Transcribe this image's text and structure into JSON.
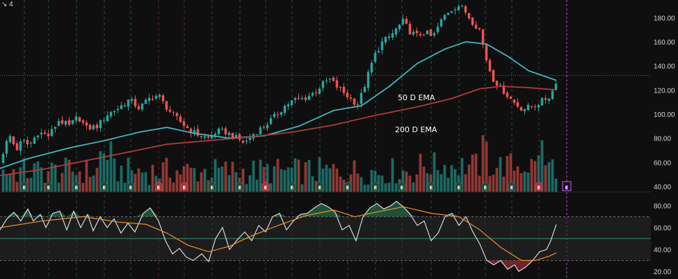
{
  "header": {
    "corner_label": "4"
  },
  "colors": {
    "background": "#0f0f0f",
    "candle_up": "#26a69a",
    "candle_down": "#ef5350",
    "vol_up": "#1f7a72",
    "vol_down": "#a83f3c",
    "ema50": "#3fb6bf",
    "ema200": "#b23a3d",
    "rsi": "#e8e8ee",
    "rsi_ma": "#f0922e",
    "grid_green": "#2f7a55",
    "grid_red": "#8a3140",
    "now_line": "#b04bd6"
  },
  "chart_data": [
    {
      "type": "line",
      "subtype": "candlestick_with_volume",
      "title": "",
      "ylim": [
        40,
        190
      ],
      "yticks": [
        "180.00",
        "160.00",
        "140.00",
        "120.00",
        "100.00",
        "80.00",
        "60.00",
        "40.00"
      ],
      "price_path": [
        [
          0,
          60
        ],
        [
          8,
          75
        ],
        [
          15,
          82
        ],
        [
          23,
          70
        ],
        [
          32,
          78
        ],
        [
          42,
          74
        ],
        [
          55,
          85
        ],
        [
          70,
          82
        ],
        [
          85,
          95
        ],
        [
          100,
          90
        ],
        [
          112,
          98
        ],
        [
          125,
          88
        ],
        [
          140,
          90
        ],
        [
          155,
          100
        ],
        [
          170,
          105
        ],
        [
          186,
          112
        ],
        [
          200,
          105
        ],
        [
          215,
          113
        ],
        [
          228,
          116
        ],
        [
          236,
          108
        ],
        [
          248,
          100
        ],
        [
          262,
          92
        ],
        [
          275,
          86
        ],
        [
          288,
          82
        ],
        [
          300,
          80
        ],
        [
          312,
          86
        ],
        [
          325,
          85
        ],
        [
          340,
          80
        ],
        [
          352,
          76
        ],
        [
          365,
          84
        ],
        [
          380,
          90
        ],
        [
          395,
          98
        ],
        [
          410,
          107
        ],
        [
          424,
          112
        ],
        [
          438,
          113
        ],
        [
          452,
          118
        ],
        [
          466,
          126
        ],
        [
          474,
          129
        ],
        [
          484,
          123
        ],
        [
          496,
          117
        ],
        [
          505,
          112
        ],
        [
          515,
          108
        ],
        [
          525,
          125
        ],
        [
          538,
          148
        ],
        [
          550,
          160
        ],
        [
          562,
          165
        ],
        [
          572,
          172
        ],
        [
          580,
          177
        ],
        [
          590,
          168
        ],
        [
          600,
          165
        ],
        [
          612,
          168
        ],
        [
          622,
          163
        ],
        [
          632,
          175
        ],
        [
          642,
          184
        ],
        [
          652,
          188
        ],
        [
          660,
          190
        ],
        [
          668,
          186
        ],
        [
          680,
          176
        ],
        [
          690,
          170
        ],
        [
          698,
          148
        ],
        [
          708,
          130
        ],
        [
          720,
          122
        ],
        [
          732,
          114
        ],
        [
          742,
          108
        ],
        [
          752,
          104
        ],
        [
          762,
          106
        ],
        [
          772,
          108
        ],
        [
          782,
          112
        ],
        [
          792,
          115
        ],
        [
          800,
          128
        ]
      ],
      "series": [
        {
          "name": "50 D EMA",
          "values": [
            [
              0,
              55
            ],
            [
              40,
              63
            ],
            [
              100,
              72
            ],
            [
              150,
              78
            ],
            [
              200,
              85
            ],
            [
              240,
              89
            ],
            [
              280,
              84
            ],
            [
              330,
              80
            ],
            [
              380,
              82
            ],
            [
              430,
              90
            ],
            [
              480,
              103
            ],
            [
              520,
              107
            ],
            [
              560,
              123
            ],
            [
              600,
              142
            ],
            [
              640,
              154
            ],
            [
              670,
              160
            ],
            [
              700,
              158
            ],
            [
              730,
              148
            ],
            [
              760,
              136
            ],
            [
              790,
              130
            ],
            [
              800,
              128
            ]
          ]
        },
        {
          "name": "200 D EMA",
          "values": [
            [
              0,
              49
            ],
            [
              60,
              54
            ],
            [
              120,
              61
            ],
            [
              180,
              68
            ],
            [
              240,
              75
            ],
            [
              300,
              78
            ],
            [
              360,
              81
            ],
            [
              420,
              85
            ],
            [
              480,
              91
            ],
            [
              540,
              99
            ],
            [
              600,
              106
            ],
            [
              650,
              113
            ],
            [
              690,
              121
            ],
            [
              720,
              123
            ],
            [
              760,
              122
            ],
            [
              800,
              120
            ]
          ]
        }
      ],
      "annotations": [
        {
          "text": "50 D EMA"
        },
        {
          "text": "200 D EMA"
        }
      ],
      "earnings_marker_label": "E",
      "earnings_markers": [
        {
          "x": 35,
          "kind": "green"
        },
        {
          "x": 70,
          "kind": "green"
        },
        {
          "x": 110,
          "kind": "green"
        },
        {
          "x": 150,
          "kind": "green"
        },
        {
          "x": 188,
          "kind": "green"
        },
        {
          "x": 228,
          "kind": "red"
        },
        {
          "x": 265,
          "kind": "red"
        },
        {
          "x": 305,
          "kind": "green"
        },
        {
          "x": 345,
          "kind": "green"
        },
        {
          "x": 382,
          "kind": "red"
        },
        {
          "x": 420,
          "kind": "green"
        },
        {
          "x": 460,
          "kind": "green"
        },
        {
          "x": 500,
          "kind": "green"
        },
        {
          "x": 540,
          "kind": "green"
        },
        {
          "x": 578,
          "kind": "green"
        },
        {
          "x": 620,
          "kind": "green"
        },
        {
          "x": 660,
          "kind": "green"
        },
        {
          "x": 698,
          "kind": "green"
        },
        {
          "x": 736,
          "kind": "green"
        },
        {
          "x": 775,
          "kind": "red"
        },
        {
          "x": 815,
          "kind": "future"
        }
      ],
      "vertical_markers": [
        {
          "x": 35,
          "kind": "green"
        },
        {
          "x": 70,
          "kind": "green"
        },
        {
          "x": 110,
          "kind": "green"
        },
        {
          "x": 150,
          "kind": "green"
        },
        {
          "x": 188,
          "kind": "green"
        },
        {
          "x": 228,
          "kind": "red"
        },
        {
          "x": 265,
          "kind": "red"
        },
        {
          "x": 305,
          "kind": "green"
        },
        {
          "x": 345,
          "kind": "green"
        },
        {
          "x": 382,
          "kind": "red"
        },
        {
          "x": 420,
          "kind": "green"
        },
        {
          "x": 460,
          "kind": "green"
        },
        {
          "x": 500,
          "kind": "green"
        },
        {
          "x": 540,
          "kind": "green"
        },
        {
          "x": 578,
          "kind": "green"
        },
        {
          "x": 620,
          "kind": "green"
        },
        {
          "x": 660,
          "kind": "green"
        },
        {
          "x": 698,
          "kind": "green"
        },
        {
          "x": 736,
          "kind": "green"
        },
        {
          "x": 775,
          "kind": "red"
        },
        {
          "x": 815,
          "kind": "now"
        }
      ],
      "reference_price": 132
    },
    {
      "type": "line",
      "subtype": "rsi",
      "title": "",
      "ylim": [
        15,
        88
      ],
      "yticks": [
        "80.00",
        "60.00",
        "40.00",
        "20.00"
      ],
      "bands": {
        "upper": 70,
        "lower": 30,
        "mid": 50
      },
      "series": [
        {
          "name": "",
          "values": [
            [
              0,
              58
            ],
            [
              10,
              68
            ],
            [
              20,
              74
            ],
            [
              30,
              66
            ],
            [
              40,
              77
            ],
            [
              48,
              66
            ],
            [
              58,
              72
            ],
            [
              66,
              60
            ],
            [
              76,
              73
            ],
            [
              86,
              75
            ],
            [
              96,
              58
            ],
            [
              106,
              75
            ],
            [
              116,
              60
            ],
            [
              126,
              72
            ],
            [
              134,
              57
            ],
            [
              144,
              70
            ],
            [
              154,
              60
            ],
            [
              164,
              68
            ],
            [
              174,
              55
            ],
            [
              184,
              64
            ],
            [
              194,
              56
            ],
            [
              206,
              73
            ],
            [
              216,
              78
            ],
            [
              228,
              66
            ],
            [
              238,
              48
            ],
            [
              248,
              36
            ],
            [
              258,
              41
            ],
            [
              268,
              33
            ],
            [
              278,
              30
            ],
            [
              290,
              36
            ],
            [
              300,
              29
            ],
            [
              310,
              50
            ],
            [
              320,
              60
            ],
            [
              330,
              40
            ],
            [
              340,
              48
            ],
            [
              352,
              56
            ],
            [
              362,
              48
            ],
            [
              372,
              62
            ],
            [
              382,
              56
            ],
            [
              392,
              70
            ],
            [
              402,
              73
            ],
            [
              412,
              58
            ],
            [
              422,
              66
            ],
            [
              432,
              72
            ],
            [
              442,
              73
            ],
            [
              452,
              78
            ],
            [
              462,
              82
            ],
            [
              472,
              79
            ],
            [
              482,
              74
            ],
            [
              492,
              58
            ],
            [
              502,
              62
            ],
            [
              512,
              48
            ],
            [
              522,
              70
            ],
            [
              532,
              78
            ],
            [
              542,
              82
            ],
            [
              552,
              77
            ],
            [
              562,
              80
            ],
            [
              570,
              84
            ],
            [
              580,
              79
            ],
            [
              590,
              72
            ],
            [
              600,
              62
            ],
            [
              610,
              66
            ],
            [
              620,
              48
            ],
            [
              630,
              55
            ],
            [
              640,
              70
            ],
            [
              650,
              73
            ],
            [
              660,
              62
            ],
            [
              670,
              70
            ],
            [
              680,
              56
            ],
            [
              690,
              45
            ],
            [
              700,
              30
            ],
            [
              710,
              26
            ],
            [
              720,
              30
            ],
            [
              730,
              22
            ],
            [
              740,
              26
            ],
            [
              746,
              20
            ],
            [
              756,
              24
            ],
            [
              766,
              30
            ],
            [
              776,
              38
            ],
            [
              786,
              40
            ],
            [
              792,
              48
            ],
            [
              800,
              63
            ]
          ]
        },
        {
          "name": "",
          "values": [
            [
              0,
              60
            ],
            [
              60,
              66
            ],
            [
              120,
              70
            ],
            [
              170,
              65
            ],
            [
              210,
              63
            ],
            [
              240,
              55
            ],
            [
              270,
              44
            ],
            [
              300,
              38
            ],
            [
              330,
              43
            ],
            [
              360,
              52
            ],
            [
              400,
              62
            ],
            [
              440,
              71
            ],
            [
              480,
              76
            ],
            [
              510,
              70
            ],
            [
              540,
              74
            ],
            [
              580,
              79
            ],
            [
              620,
              73
            ],
            [
              660,
              70
            ],
            [
              690,
              58
            ],
            [
              720,
              42
            ],
            [
              750,
              30
            ],
            [
              770,
              30
            ],
            [
              790,
              34
            ],
            [
              800,
              37
            ]
          ]
        }
      ]
    }
  ]
}
